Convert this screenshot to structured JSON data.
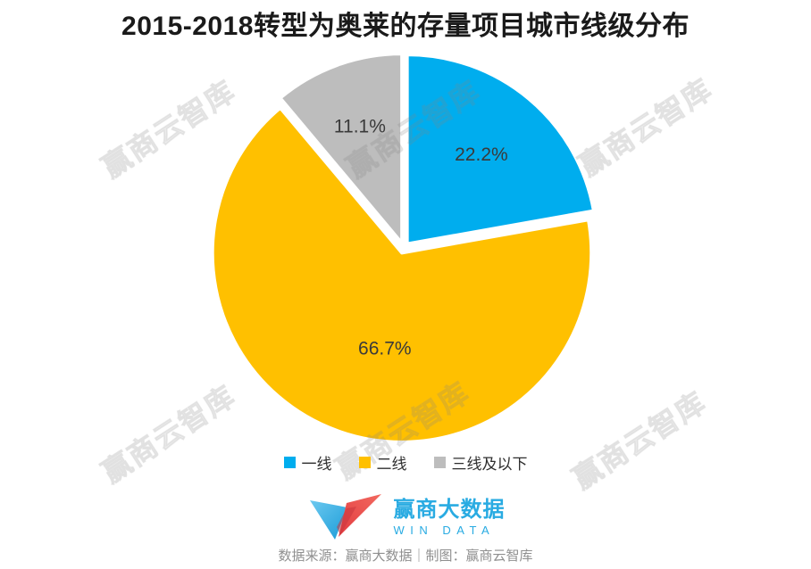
{
  "title": "2015-2018转型为奥莱的存量项目城市线级分布",
  "chart_data": {
    "type": "pie",
    "title": "2015-2018转型为奥莱的存量项目城市线级分布",
    "labels": [
      "一线",
      "二线",
      "三线及以下"
    ],
    "values": [
      22.2,
      66.7,
      11.1
    ],
    "value_labels": [
      "22.2%",
      "66.7%",
      "11.1%"
    ],
    "colors": [
      "#00ADEE",
      "#FFC000",
      "#BDBDBD"
    ],
    "start_angle_deg": 0,
    "direction": "clockwise",
    "legend_position": "bottom",
    "label_color": "#3a3a3a"
  },
  "watermark": {
    "text": "赢商云智库"
  },
  "footer": {
    "logo_cn": "赢商大数据",
    "logo_en": "WIN DATA",
    "source_line": "数据来源：赢商大数据｜制图：赢商云智库"
  },
  "colors": {
    "accent_blue": "#00ADEE",
    "accent_yellow": "#FFC000",
    "accent_gray": "#BDBDBD",
    "logo_blue": "#29ABE2",
    "logo_red": "#E8403F",
    "title_text": "#1A1A1A",
    "source_text": "#8F8F8F"
  }
}
